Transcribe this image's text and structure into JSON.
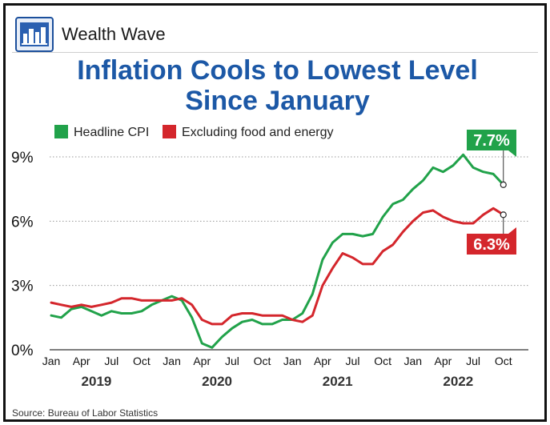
{
  "brand": {
    "name": "Wealth Wave",
    "logo_icon": "city-skyline-icon"
  },
  "title_line1": "Inflation Cools to Lowest Level",
  "title_line2": "Since January",
  "source": "Source: Bureau of Labor Statistics",
  "colors": {
    "headline": "#21a24a",
    "core": "#d4262c",
    "title": "#1c58a6"
  },
  "chart_data": {
    "type": "line",
    "ylim": [
      0,
      9
    ],
    "yticks": [
      "0%",
      "3%",
      "6%",
      "9%"
    ],
    "ytick_values": [
      0,
      3,
      6,
      9
    ],
    "xticks": [
      "Jan",
      "Apr",
      "Jul",
      "Oct",
      "Jan",
      "Apr",
      "Jul",
      "Oct",
      "Jan",
      "Apr",
      "Jul",
      "Oct",
      "Jan",
      "Apr",
      "Jul",
      "Oct"
    ],
    "years": [
      "2019",
      "2020",
      "2021",
      "2022"
    ],
    "x_start": "2019-01",
    "x_end": "2022-10",
    "grid": "horizontal dotted",
    "legend": "top-left",
    "series": [
      {
        "name": "Headline CPI",
        "color": "#21a24a",
        "values": [
          1.6,
          1.5,
          1.9,
          2.0,
          1.8,
          1.6,
          1.8,
          1.7,
          1.7,
          1.8,
          2.1,
          2.3,
          2.5,
          2.3,
          1.5,
          0.3,
          0.1,
          0.6,
          1.0,
          1.3,
          1.4,
          1.2,
          1.2,
          1.4,
          1.4,
          1.7,
          2.6,
          4.2,
          5.0,
          5.4,
          5.4,
          5.3,
          5.4,
          6.2,
          6.8,
          7.0,
          7.5,
          7.9,
          8.5,
          8.3,
          8.6,
          9.1,
          8.5,
          8.3,
          8.2,
          7.7
        ],
        "end_label": "7.7%"
      },
      {
        "name": "Excluding food and energy",
        "color": "#d4262c",
        "values": [
          2.2,
          2.1,
          2.0,
          2.1,
          2.0,
          2.1,
          2.2,
          2.4,
          2.4,
          2.3,
          2.3,
          2.3,
          2.3,
          2.4,
          2.1,
          1.4,
          1.2,
          1.2,
          1.6,
          1.7,
          1.7,
          1.6,
          1.6,
          1.6,
          1.4,
          1.3,
          1.6,
          3.0,
          3.8,
          4.5,
          4.3,
          4.0,
          4.0,
          4.6,
          4.9,
          5.5,
          6.0,
          6.4,
          6.5,
          6.2,
          6.0,
          5.9,
          5.9,
          6.3,
          6.6,
          6.3
        ],
        "end_label": "6.3%"
      }
    ]
  }
}
